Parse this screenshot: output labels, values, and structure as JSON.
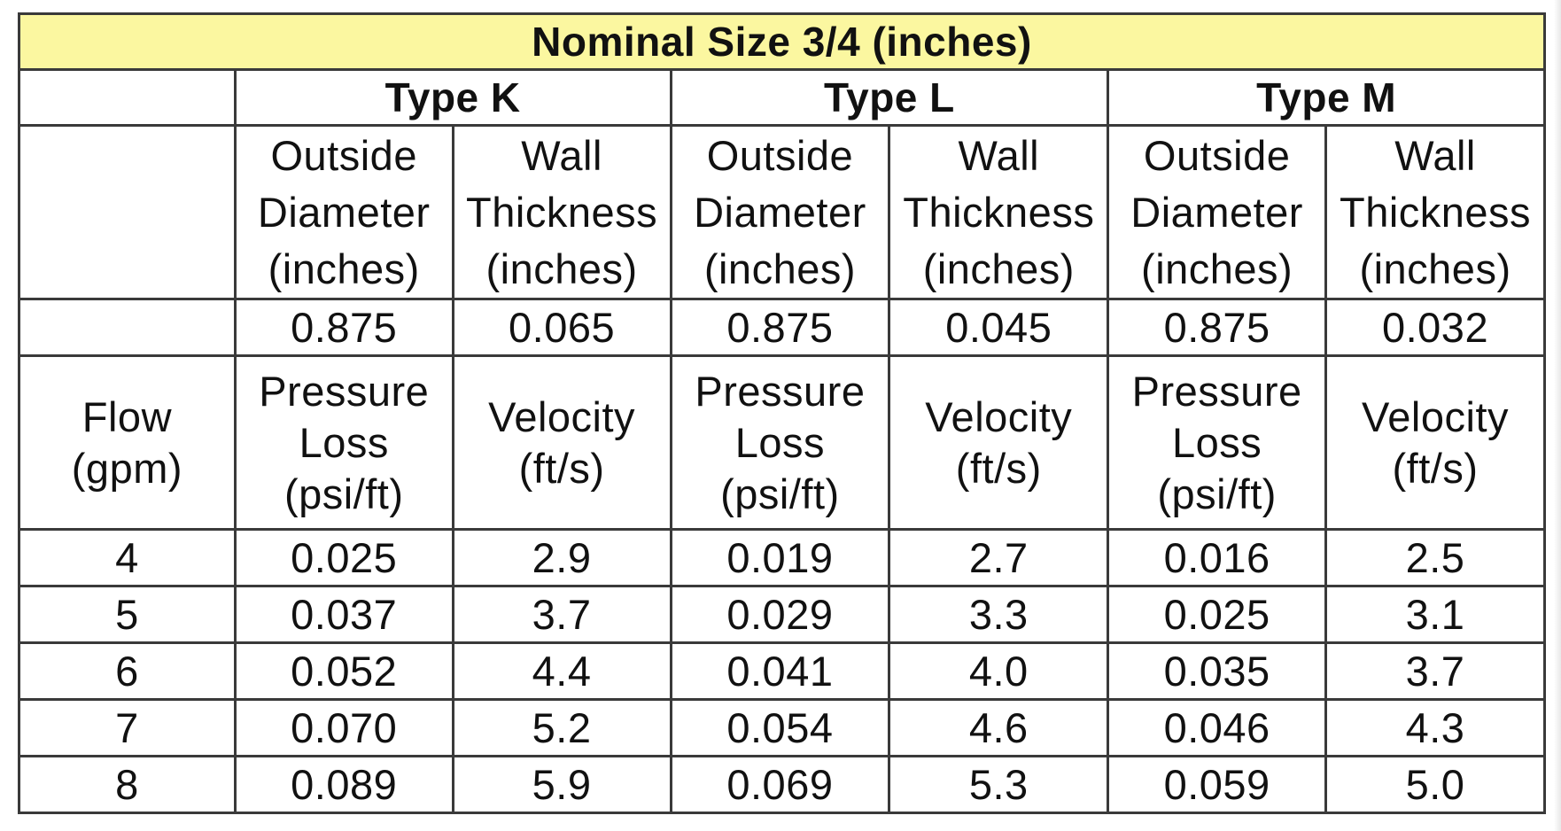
{
  "title": "Nominal Size 3/4 (inches)",
  "types": [
    "Type K",
    "Type L",
    "Type M"
  ],
  "spec_headers": {
    "outside_diameter": [
      "Outside",
      "Diameter",
      "(inches)"
    ],
    "wall_thickness": [
      "Wall",
      "Thickness",
      "(inches)"
    ]
  },
  "spec_values": {
    "type_k": {
      "od": "0.875",
      "wall": "0.065"
    },
    "type_l": {
      "od": "0.875",
      "wall": "0.045"
    },
    "type_m": {
      "od": "0.875",
      "wall": "0.032"
    }
  },
  "flow_headers": {
    "flow": [
      "Flow",
      "(gpm)"
    ],
    "pressure_loss": [
      "Pressure",
      "Loss",
      "(psi/ft)"
    ],
    "velocity": [
      "Velocity",
      "(ft/s)"
    ]
  },
  "rows": [
    {
      "flow": "4",
      "k_pl": "0.025",
      "k_v": "2.9",
      "l_pl": "0.019",
      "l_v": "2.7",
      "m_pl": "0.016",
      "m_v": "2.5"
    },
    {
      "flow": "5",
      "k_pl": "0.037",
      "k_v": "3.7",
      "l_pl": "0.029",
      "l_v": "3.3",
      "m_pl": "0.025",
      "m_v": "3.1"
    },
    {
      "flow": "6",
      "k_pl": "0.052",
      "k_v": "4.4",
      "l_pl": "0.041",
      "l_v": "4.0",
      "m_pl": "0.035",
      "m_v": "3.7"
    },
    {
      "flow": "7",
      "k_pl": "0.070",
      "k_v": "5.2",
      "l_pl": "0.054",
      "l_v": "4.6",
      "m_pl": "0.046",
      "m_v": "4.3"
    },
    {
      "flow": "8",
      "k_pl": "0.089",
      "k_v": "5.9",
      "l_pl": "0.069",
      "l_v": "5.3",
      "m_pl": "0.059",
      "m_v": "5.0"
    }
  ],
  "colors": {
    "title_background": "#fbf7a0",
    "border": "#3a3a3a"
  }
}
